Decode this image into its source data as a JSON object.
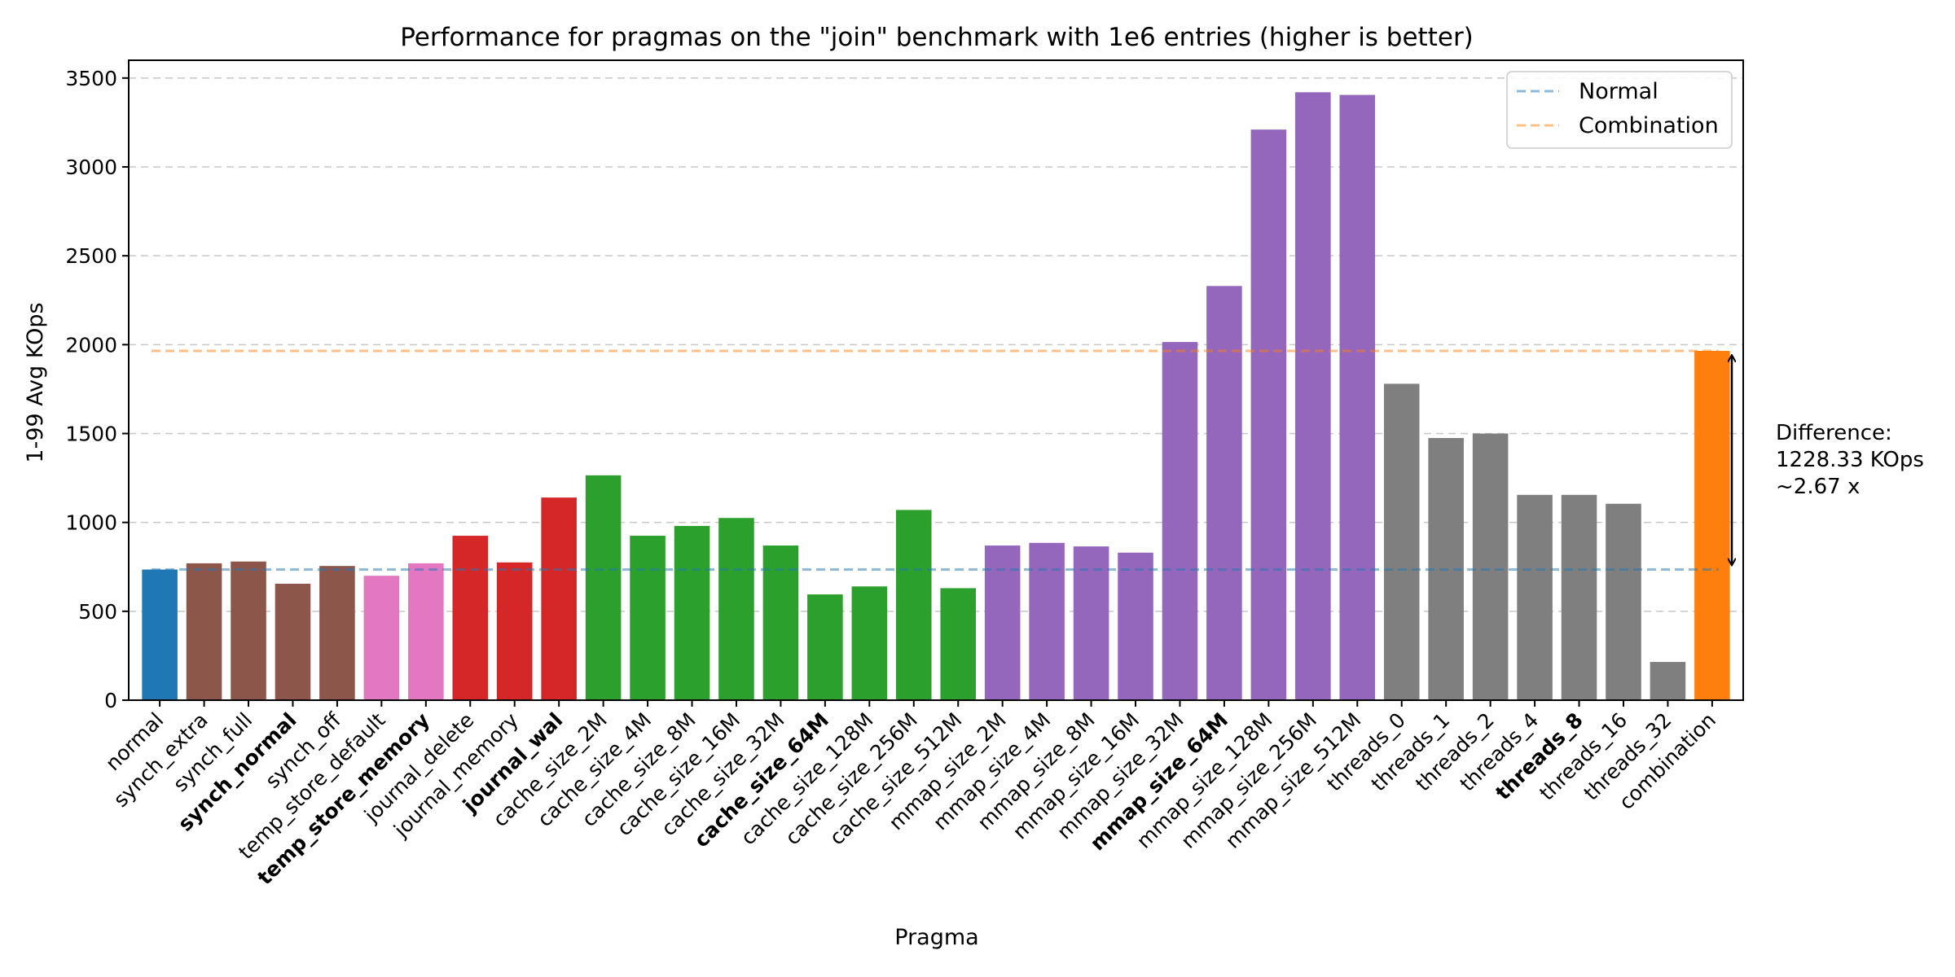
{
  "chart_data": {
    "type": "bar",
    "title": "Performance for pragmas on the \"join\" benchmark with 1e6 entries (higher is better)",
    "xlabel": "Pragma",
    "ylabel": "1-99 Avg KOps",
    "ylim": [
      0,
      3600
    ],
    "yticks": [
      0,
      500,
      1000,
      1500,
      2000,
      2500,
      3000,
      3500
    ],
    "grid": "y-dashed",
    "legend_position": "top-right",
    "categories": [
      "normal",
      "synch_extra",
      "synch_full",
      "synch_normal",
      "synch_off",
      "temp_store_default",
      "temp_store_memory",
      "journal_delete",
      "journal_memory",
      "journal_wal",
      "cache_size_2M",
      "cache_size_4M",
      "cache_size_8M",
      "cache_size_16M",
      "cache_size_32M",
      "cache_size_64M",
      "cache_size_128M",
      "cache_size_256M",
      "cache_size_512M",
      "mmap_size_2M",
      "mmap_size_4M",
      "mmap_size_8M",
      "mmap_size_16M",
      "mmap_size_32M",
      "mmap_size_64M",
      "mmap_size_128M",
      "mmap_size_256M",
      "mmap_size_512M",
      "threads_0",
      "threads_1",
      "threads_2",
      "threads_4",
      "threads_8",
      "threads_16",
      "threads_32",
      "combination"
    ],
    "values": [
      735,
      770,
      780,
      655,
      755,
      700,
      770,
      925,
      775,
      1140,
      1265,
      925,
      980,
      1025,
      870,
      595,
      640,
      1070,
      630,
      870,
      885,
      865,
      830,
      2015,
      2330,
      3210,
      3420,
      3405,
      1780,
      1475,
      1500,
      1155,
      1155,
      1105,
      215,
      1965
    ],
    "bold_categories": [
      "synch_normal",
      "temp_store_memory",
      "journal_wal",
      "cache_size_64M",
      "mmap_size_64M",
      "threads_8"
    ],
    "bar_colors": [
      "#1f77b4",
      "#8c564b",
      "#8c564b",
      "#8c564b",
      "#8c564b",
      "#e377c2",
      "#e377c2",
      "#d62728",
      "#d62728",
      "#d62728",
      "#2ca02c",
      "#2ca02c",
      "#2ca02c",
      "#2ca02c",
      "#2ca02c",
      "#2ca02c",
      "#2ca02c",
      "#2ca02c",
      "#2ca02c",
      "#9467bd",
      "#9467bd",
      "#9467bd",
      "#9467bd",
      "#9467bd",
      "#9467bd",
      "#9467bd",
      "#9467bd",
      "#9467bd",
      "#7f7f7f",
      "#7f7f7f",
      "#7f7f7f",
      "#7f7f7f",
      "#7f7f7f",
      "#7f7f7f",
      "#7f7f7f",
      "#ff7f0e"
    ],
    "reference_lines": [
      {
        "name": "Normal",
        "value": 735,
        "color": "#1f77b4"
      },
      {
        "name": "Combination",
        "value": 1965,
        "color": "#ff7f0e"
      }
    ],
    "annotation": {
      "lines": [
        "Difference:",
        "1228.33 KOps",
        "~2.67 x"
      ]
    }
  }
}
